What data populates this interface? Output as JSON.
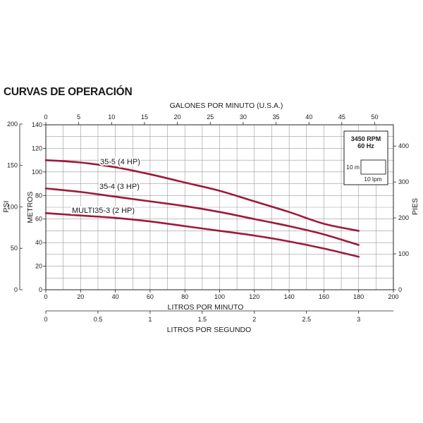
{
  "title": "CURVAS DE OPERACIÓN",
  "chart_data": {
    "type": "line",
    "title": "CURVAS DE OPERACIÓN",
    "xlabel": "LITROS POR MINUTO",
    "xlim": [
      0,
      200
    ],
    "xticks": [
      0,
      20,
      40,
      60,
      80,
      100,
      120,
      140,
      160,
      180,
      200
    ],
    "ylabel": "METROS",
    "ylim": [
      0,
      140
    ],
    "yticks": [
      0,
      20,
      40,
      60,
      80,
      100,
      120,
      140
    ],
    "grid": true,
    "top_axis": {
      "label": "GALONES POR MINUTO (U.S.A.)",
      "ticks": [
        0,
        5,
        10,
        15,
        20,
        25,
        30,
        35,
        40,
        45,
        50
      ]
    },
    "bottom_axis_2": {
      "label": "LITROS POR SEGUNDO",
      "ticks": [
        "0",
        "0.5",
        "1",
        "1.5",
        "2",
        "2.5",
        "3"
      ]
    },
    "left_axis_2": {
      "label": "PSI",
      "ticks": [
        0,
        50,
        100,
        150,
        200
      ]
    },
    "right_axis": {
      "label": "PIES",
      "ticks": [
        0,
        100,
        200,
        300,
        400
      ]
    },
    "series": [
      {
        "name": "35-5 (4 HP)",
        "color": "#9b1b3c",
        "x": [
          0,
          20,
          40,
          60,
          80,
          100,
          120,
          140,
          160,
          180
        ],
        "y": [
          110,
          108,
          104,
          98,
          91,
          84,
          75,
          66,
          56,
          50
        ]
      },
      {
        "name": "35-4 (3 HP)",
        "color": "#9b1b3c",
        "x": [
          0,
          20,
          40,
          60,
          80,
          100,
          120,
          140,
          160,
          180
        ],
        "y": [
          86,
          83,
          79,
          75,
          71,
          66,
          60,
          54,
          47,
          38
        ]
      },
      {
        "name": "MULTI35-3 (2 HP)",
        "color": "#9b1b3c",
        "x": [
          0,
          20,
          40,
          60,
          80,
          100,
          120,
          140,
          160,
          180
        ],
        "y": [
          65,
          63,
          61,
          58,
          54,
          50,
          46,
          41,
          35,
          28
        ]
      }
    ],
    "legend_box": {
      "rpm": "3450 RPM",
      "hz": "60 Hz",
      "scale_y": "10 m",
      "scale_x": "10 lpm"
    }
  }
}
